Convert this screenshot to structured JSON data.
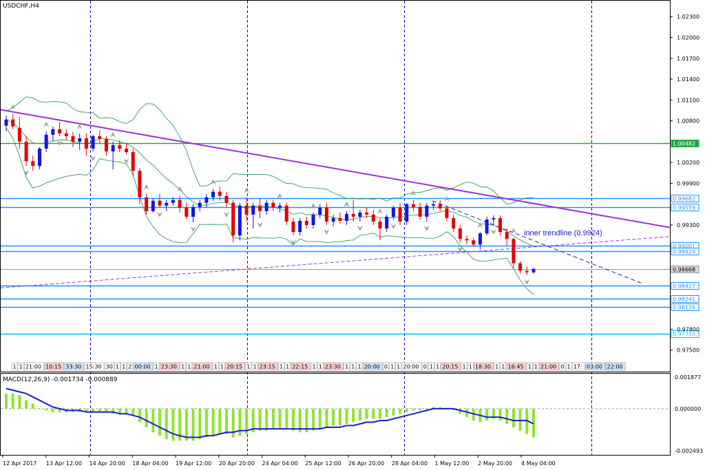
{
  "chart_data": {
    "type": "candlestick",
    "symbol_label": "USDCHF,H4",
    "indicator_label": "MACD(12,26,9) -0.001734 -0.000889",
    "price_axis": {
      "ylim": [
        0.9721,
        1.0252
      ],
      "ticks": [
        "1.02300",
        "1.02000",
        "1.01700",
        "1.01400",
        "1.01100",
        "1.00800",
        "1.00200",
        "0.99900",
        "0.99300",
        "0.97800",
        "0.97500"
      ]
    },
    "macd_axis": {
      "ylim": [
        -0.0027,
        0.002
      ],
      "ticks": [
        "0.001877",
        "0.000000",
        "-0.002493"
      ]
    },
    "x_ticks": [
      "12 Apr 2017",
      "13 Apr 12:00",
      "14 Apr 20:00",
      "18 Apr 04:00",
      "19 Apr 12:00",
      "20 Apr 20:00",
      "24 Apr 04:00",
      "25 Apr 12:00",
      "26 Apr 20:00",
      "28 Apr 04:00",
      "1 May 12:00",
      "2 May 20:00",
      "4 May 04:00"
    ],
    "levels": [
      {
        "value": 1.00482,
        "label": "1.00482",
        "color": "#1faa3c",
        "kind": "green"
      },
      {
        "value": 0.99682,
        "label": "0.99682",
        "color": "#1e90ff",
        "kind": "blue"
      },
      {
        "value": 0.99559,
        "label": "0.99559",
        "color": "#1e90ff",
        "kind": "blue"
      },
      {
        "value": 0.99001,
        "label": "0.99001",
        "color": "#1e90ff",
        "kind": "blue"
      },
      {
        "value": 0.98924,
        "label": "0.98924",
        "color": "#1e90ff",
        "kind": "blue"
      },
      {
        "value": 0.98668,
        "label": "0.98668",
        "color": "#9a9a9a",
        "kind": "current"
      },
      {
        "value": 0.98427,
        "label": "0.98427",
        "color": "#1e90ff",
        "kind": "blue"
      },
      {
        "value": 0.98241,
        "label": "0.98241",
        "color": "#1e90ff",
        "kind": "blue"
      },
      {
        "value": 0.98126,
        "label": "0.98126",
        "color": "#1e90ff",
        "kind": "blue"
      },
      {
        "value": 0.97735,
        "label": "0.97735",
        "color": "#00bfff",
        "kind": "cyan"
      }
    ],
    "trendline_label": "inner trendline (0.9924)",
    "session_labels": [
      "1",
      "1",
      "21:00",
      "10:15",
      "33:30",
      "15:30",
      "30",
      "1",
      "1",
      "2",
      "00:00",
      "1",
      "23:30",
      "1",
      "1",
      "21:00",
      "1",
      "1",
      "20:15",
      "1",
      "1",
      "23:15",
      "1",
      "1",
      "22:15",
      "1",
      "1",
      "23:30",
      "1",
      "1",
      "1",
      "20:00",
      "0",
      "1",
      "1",
      "20:00",
      "0",
      "1",
      "1",
      "20:15",
      "1",
      "1",
      "18:30",
      "1",
      "1",
      "16:45",
      "1",
      "1",
      "21:00",
      "0",
      "1",
      "17:",
      "03:00",
      "1",
      "20:30",
      "22:00"
    ],
    "colors": {
      "bull": "#1414e6",
      "bear": "#e60000",
      "trend": "#9b30d9",
      "band": "#2e9e50",
      "macd_hist": "#8ce62e",
      "macd_signal": "#1a1ad0",
      "grid": "#0000a0"
    },
    "candles": [
      [
        1.0073,
        1.0088,
        1.0065,
        1.0082
      ],
      [
        1.0082,
        1.009,
        1.0068,
        1.0072
      ],
      [
        1.007,
        1.0085,
        1.004,
        1.005
      ],
      [
        1.005,
        1.0058,
        1.0015,
        1.0022
      ],
      [
        1.0022,
        1.003,
        1.0008,
        1.0015
      ],
      [
        1.0015,
        1.0042,
        1.001,
        1.004
      ],
      [
        1.004,
        1.0065,
        1.0035,
        1.006
      ],
      [
        1.006,
        1.0072,
        1.005,
        1.0068
      ],
      [
        1.0068,
        1.0078,
        1.0058,
        1.0062
      ],
      [
        1.0062,
        1.0068,
        1.0052,
        1.0058
      ],
      [
        1.0058,
        1.0064,
        1.0042,
        1.005
      ],
      [
        1.005,
        1.0062,
        1.0038,
        1.0055
      ],
      [
        1.0055,
        1.0062,
        1.003,
        1.004
      ],
      [
        1.004,
        1.006,
        1.0036,
        1.0058
      ],
      [
        1.0058,
        1.0066,
        1.0048,
        1.0054
      ],
      [
        1.0054,
        1.0058,
        1.003,
        1.0036
      ],
      [
        1.0036,
        1.005,
        1.001,
        1.0045
      ],
      [
        1.0045,
        1.0052,
        1.0035,
        1.004
      ],
      [
        1.004,
        1.0048,
        1.0032,
        1.0035
      ],
      [
        1.0035,
        1.004,
        1.0,
        1.0008
      ],
      [
        1.0008,
        1.0012,
        0.996,
        0.997
      ],
      [
        0.997,
        0.9975,
        0.9945,
        0.995
      ],
      [
        0.995,
        0.9968,
        0.9948,
        0.9965
      ],
      [
        0.9965,
        0.9975,
        0.9955,
        0.9958
      ],
      [
        0.9958,
        0.9966,
        0.995,
        0.9962
      ],
      [
        0.9962,
        0.997,
        0.9958,
        0.9966
      ],
      [
        0.9966,
        0.9972,
        0.9948,
        0.9955
      ],
      [
        0.9955,
        0.9962,
        0.9938,
        0.9942
      ],
      [
        0.9942,
        0.996,
        0.9934,
        0.9956
      ],
      [
        0.9956,
        0.9966,
        0.995,
        0.9962
      ],
      [
        0.9962,
        0.9975,
        0.9955,
        0.997
      ],
      [
        0.997,
        0.9982,
        0.9965,
        0.9978
      ],
      [
        0.9978,
        0.9985,
        0.9965,
        0.9972
      ],
      [
        0.9972,
        0.9978,
        0.9955,
        0.9962
      ],
      [
        0.9962,
        0.9966,
        0.9905,
        0.9915
      ],
      [
        0.9915,
        0.9962,
        0.9908,
        0.9958
      ],
      [
        0.9958,
        0.997,
        0.9935,
        0.9945
      ],
      [
        0.9945,
        0.9962,
        0.9925,
        0.9958
      ],
      [
        0.9958,
        0.9968,
        0.994,
        0.995
      ],
      [
        0.995,
        0.9966,
        0.9945,
        0.9962
      ],
      [
        0.9962,
        0.9966,
        0.995,
        0.9955
      ],
      [
        0.9955,
        0.9962,
        0.9948,
        0.9958
      ],
      [
        0.9958,
        0.9962,
        0.993,
        0.9935
      ],
      [
        0.9935,
        0.994,
        0.9915,
        0.992
      ],
      [
        0.992,
        0.994,
        0.9915,
        0.9936
      ],
      [
        0.9936,
        0.9942,
        0.9925,
        0.993
      ],
      [
        0.993,
        0.9948,
        0.9925,
        0.9945
      ],
      [
        0.9945,
        0.996,
        0.994,
        0.9955
      ],
      [
        0.9955,
        0.9962,
        0.993,
        0.9935
      ],
      [
        0.9935,
        0.9945,
        0.9928,
        0.994
      ],
      [
        0.994,
        0.9948,
        0.9932,
        0.9936
      ],
      [
        0.9936,
        0.995,
        0.993,
        0.9946
      ],
      [
        0.9946,
        0.9966,
        0.9935,
        0.9942
      ],
      [
        0.9942,
        0.9952,
        0.9935,
        0.9948
      ],
      [
        0.9948,
        0.9955,
        0.994,
        0.9945
      ],
      [
        0.9945,
        0.9952,
        0.993,
        0.9935
      ],
      [
        0.9935,
        0.994,
        0.9908,
        0.9925
      ],
      [
        0.9925,
        0.9945,
        0.992,
        0.9942
      ],
      [
        0.9942,
        0.9958,
        0.9938,
        0.9955
      ],
      [
        0.9955,
        0.9962,
        0.993,
        0.9935
      ],
      [
        0.9935,
        0.9962,
        0.993,
        0.996
      ],
      [
        0.996,
        0.9966,
        0.995,
        0.9956
      ],
      [
        0.9956,
        0.9962,
        0.9938,
        0.9942
      ],
      [
        0.9942,
        0.9962,
        0.9935,
        0.9958
      ],
      [
        0.9958,
        0.9964,
        0.9952,
        0.996
      ],
      [
        0.996,
        0.9966,
        0.995,
        0.9954
      ],
      [
        0.9954,
        0.9958,
        0.9935,
        0.994
      ],
      [
        0.994,
        0.9945,
        0.992,
        0.9925
      ],
      [
        0.9925,
        0.993,
        0.9905,
        0.991
      ],
      [
        0.991,
        0.9915,
        0.9902,
        0.9908
      ],
      [
        0.9908,
        0.9912,
        0.9898,
        0.9902
      ],
      [
        0.9902,
        0.992,
        0.9895,
        0.9918
      ],
      [
        0.9918,
        0.9942,
        0.9915,
        0.9938
      ],
      [
        0.9938,
        0.9944,
        0.993,
        0.994
      ],
      [
        0.994,
        0.9944,
        0.9915,
        0.992
      ],
      [
        0.992,
        0.9925,
        0.99,
        0.991
      ],
      [
        0.991,
        0.9912,
        0.9868,
        0.9875
      ],
      [
        0.9875,
        0.9878,
        0.986,
        0.9864
      ],
      [
        0.9864,
        0.987,
        0.9858,
        0.9862
      ],
      [
        0.9862,
        0.9868,
        0.986,
        0.9867
      ]
    ],
    "macd": {
      "hist": [
        0.0009,
        0.0009,
        0.0008,
        0.0005,
        0.0003,
        0.0,
        -0.0001,
        -0.0002,
        -0.0002,
        -0.0002,
        -0.0002,
        -0.0002,
        -0.0002,
        -0.0002,
        -0.0002,
        -0.0002,
        -0.0003,
        -0.0003,
        -0.0003,
        -0.0004,
        -0.0008,
        -0.0011,
        -0.0014,
        -0.0016,
        -0.0018,
        -0.0019,
        -0.0019,
        -0.0019,
        -0.0019,
        -0.0018,
        -0.0017,
        -0.0016,
        -0.0015,
        -0.0015,
        -0.0017,
        -0.0016,
        -0.0015,
        -0.0014,
        -0.0013,
        -0.0013,
        -0.0012,
        -0.0012,
        -0.0012,
        -0.0013,
        -0.0014,
        -0.0014,
        -0.0013,
        -0.0012,
        -0.0011,
        -0.001,
        -0.001,
        -0.0009,
        -0.0008,
        -0.0007,
        -0.0006,
        -0.0006,
        -0.0006,
        -0.0005,
        -0.0004,
        -0.0003,
        -0.0002,
        -0.0001,
        -0.0001,
        0.0,
        0.0001,
        0.0001,
        0.0,
        -0.0001,
        -0.0003,
        -0.0005,
        -0.0007,
        -0.0008,
        -0.0007,
        -0.0006,
        -0.0007,
        -0.0009,
        -0.0011,
        -0.0013,
        -0.0015,
        -0.0017
      ],
      "signal": [
        0.0012,
        0.0011,
        0.001,
        0.0009,
        0.0007,
        0.0005,
        0.0003,
        0.0001,
        0.0,
        -0.0001,
        -0.0001,
        -0.0001,
        -0.0002,
        -0.0002,
        -0.0002,
        -0.0002,
        -0.0002,
        -0.0003,
        -0.0003,
        -0.0004,
        -0.0005,
        -0.0007,
        -0.0009,
        -0.0011,
        -0.0013,
        -0.0015,
        -0.0016,
        -0.0017,
        -0.0017,
        -0.0017,
        -0.0016,
        -0.0016,
        -0.0015,
        -0.0014,
        -0.0014,
        -0.0013,
        -0.0013,
        -0.0012,
        -0.0012,
        -0.0012,
        -0.0012,
        -0.0012,
        -0.0012,
        -0.0012,
        -0.0012,
        -0.0012,
        -0.0012,
        -0.0012,
        -0.0011,
        -0.0011,
        -0.0011,
        -0.001,
        -0.001,
        -0.0009,
        -0.0008,
        -0.0008,
        -0.0007,
        -0.0007,
        -0.0006,
        -0.0005,
        -0.0004,
        -0.0003,
        -0.0002,
        -0.0001,
        0.0,
        0.0,
        0.0,
        0.0,
        -0.0001,
        -0.0002,
        -0.0003,
        -0.0004,
        -0.0005,
        -0.0005,
        -0.0005,
        -0.0006,
        -0.0007,
        -0.0007,
        -0.0007,
        -0.0009
      ]
    }
  }
}
